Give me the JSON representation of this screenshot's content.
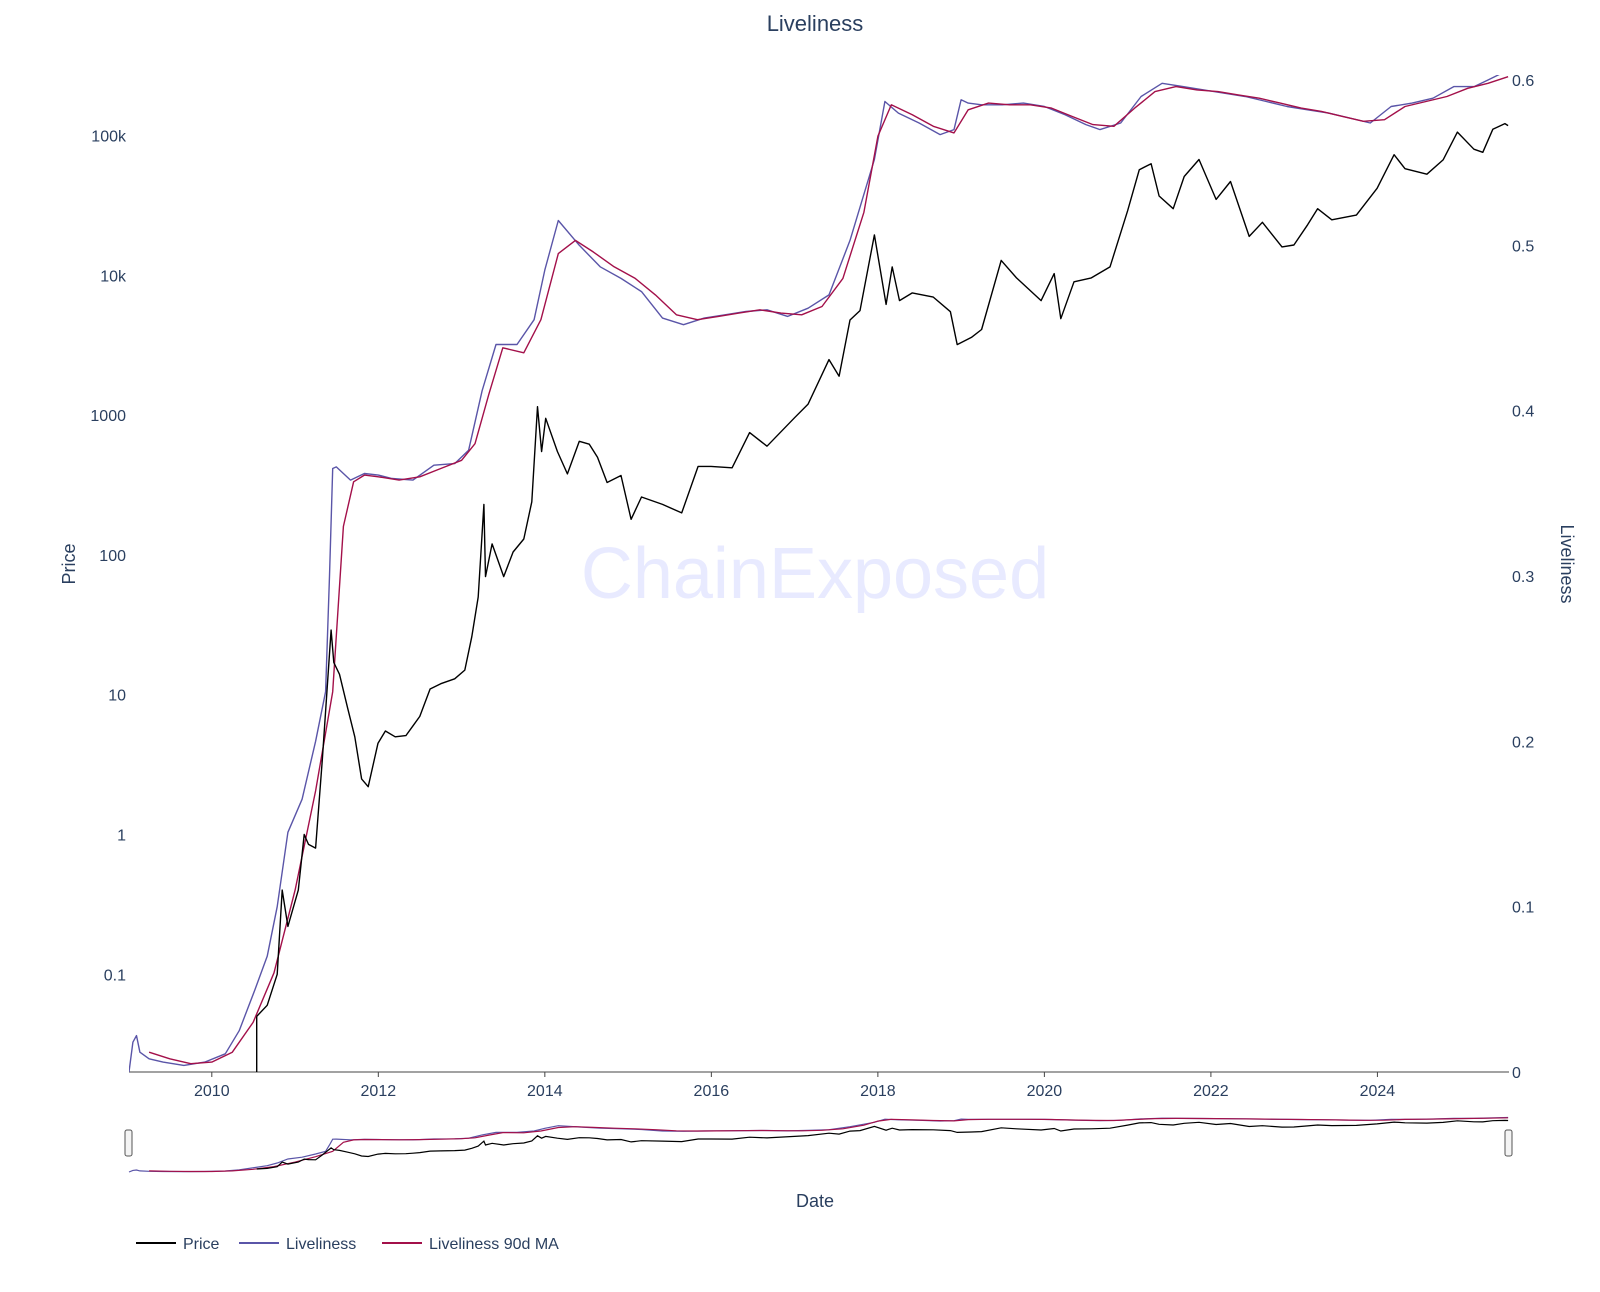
{
  "chart_data": {
    "type": "line",
    "title": "Liveliness",
    "watermark": "ChainExposed",
    "xlabel": "Date",
    "ylabel_left": "Price",
    "ylabel_right": "Liveliness",
    "x_ticks": [
      "2010",
      "2012",
      "2014",
      "2016",
      "2018",
      "2020",
      "2022",
      "2024"
    ],
    "y_left_scale": "log",
    "y_left_ticks": [
      "0.1",
      "1",
      "10",
      "100",
      "1000",
      "10k",
      "100k"
    ],
    "y_left_tick_values": [
      0.1,
      1,
      10,
      100,
      1000,
      10000,
      100000
    ],
    "y_right_ticks": [
      "0",
      "0.1",
      "0.2",
      "0.3",
      "0.4",
      "0.5",
      "0.6"
    ],
    "y_right_tick_values": [
      0,
      0.1,
      0.2,
      0.3,
      0.4,
      0.5,
      0.6
    ],
    "xlim": [
      "2009-01-03",
      "2025-08-01"
    ],
    "ylim_left": [
      0.02,
      250000
    ],
    "ylim_right": [
      0,
      0.6
    ],
    "grid": false,
    "legend_position": "bottom-left",
    "range_slider": true,
    "series": [
      {
        "name": "Price",
        "axis": "left",
        "color": "#000000",
        "points": [
          [
            "2010-07-17",
            0.05
          ],
          [
            "2010-09-01",
            0.06
          ],
          [
            "2010-10-15",
            0.1
          ],
          [
            "2010-11-06",
            0.4
          ],
          [
            "2010-12-01",
            0.22
          ],
          [
            "2011-01-15",
            0.4
          ],
          [
            "2011-02-10",
            1.0
          ],
          [
            "2011-03-01",
            0.85
          ],
          [
            "2011-04-01",
            0.8
          ],
          [
            "2011-05-01",
            3.5
          ],
          [
            "2011-06-08",
            29
          ],
          [
            "2011-06-20",
            17
          ],
          [
            "2011-07-15",
            14
          ],
          [
            "2011-08-20",
            8
          ],
          [
            "2011-09-20",
            5
          ],
          [
            "2011-10-20",
            2.5
          ],
          [
            "2011-11-18",
            2.2
          ],
          [
            "2011-12-31",
            4.5
          ],
          [
            "2012-02-01",
            5.5
          ],
          [
            "2012-03-15",
            5
          ],
          [
            "2012-05-01",
            5.1
          ],
          [
            "2012-06-01",
            6
          ],
          [
            "2012-07-01",
            7
          ],
          [
            "2012-08-15",
            11
          ],
          [
            "2012-10-01",
            12
          ],
          [
            "2012-12-01",
            13
          ],
          [
            "2013-01-15",
            15
          ],
          [
            "2013-02-15",
            26
          ],
          [
            "2013-03-15",
            50
          ],
          [
            "2013-04-09",
            230
          ],
          [
            "2013-04-16",
            70
          ],
          [
            "2013-05-15",
            120
          ],
          [
            "2013-07-05",
            70
          ],
          [
            "2013-08-15",
            105
          ],
          [
            "2013-10-01",
            130
          ],
          [
            "2013-11-05",
            240
          ],
          [
            "2013-11-30",
            1150
          ],
          [
            "2013-12-18",
            550
          ],
          [
            "2014-01-05",
            950
          ],
          [
            "2014-02-25",
            550
          ],
          [
            "2014-04-10",
            380
          ],
          [
            "2014-06-01",
            650
          ],
          [
            "2014-07-15",
            620
          ],
          [
            "2014-08-20",
            500
          ],
          [
            "2014-10-01",
            330
          ],
          [
            "2014-12-01",
            370
          ],
          [
            "2015-01-14",
            180
          ],
          [
            "2015-03-01",
            260
          ],
          [
            "2015-06-01",
            230
          ],
          [
            "2015-08-24",
            200
          ],
          [
            "2015-11-04",
            430
          ],
          [
            "2015-12-31",
            430
          ],
          [
            "2016-04-01",
            420
          ],
          [
            "2016-06-17",
            750
          ],
          [
            "2016-09-01",
            600
          ],
          [
            "2016-12-31",
            960
          ],
          [
            "2017-03-01",
            1200
          ],
          [
            "2017-06-01",
            2500
          ],
          [
            "2017-07-15",
            1900
          ],
          [
            "2017-09-01",
            4800
          ],
          [
            "2017-10-15",
            5600
          ],
          [
            "2017-12-17",
            19500
          ],
          [
            "2018-02-06",
            6200
          ],
          [
            "2018-03-05",
            11500
          ],
          [
            "2018-04-06",
            6600
          ],
          [
            "2018-06-01",
            7500
          ],
          [
            "2018-09-01",
            7000
          ],
          [
            "2018-11-15",
            5500
          ],
          [
            "2018-12-15",
            3200
          ],
          [
            "2019-02-15",
            3600
          ],
          [
            "2019-04-01",
            4100
          ],
          [
            "2019-06-26",
            12800
          ],
          [
            "2019-09-01",
            9600
          ],
          [
            "2019-12-18",
            6600
          ],
          [
            "2020-02-13",
            10300
          ],
          [
            "2020-03-13",
            4900
          ],
          [
            "2020-05-10",
            9000
          ],
          [
            "2020-07-25",
            9600
          ],
          [
            "2020-10-15",
            11500
          ],
          [
            "2020-12-31",
            29000
          ],
          [
            "2021-02-21",
            57000
          ],
          [
            "2021-04-14",
            63000
          ],
          [
            "2021-05-19",
            37000
          ],
          [
            "2021-07-20",
            30000
          ],
          [
            "2021-09-06",
            51000
          ],
          [
            "2021-11-10",
            67500
          ],
          [
            "2022-01-24",
            35000
          ],
          [
            "2022-03-28",
            47000
          ],
          [
            "2022-06-18",
            19000
          ],
          [
            "2022-08-15",
            24000
          ],
          [
            "2022-11-09",
            16000
          ],
          [
            "2022-12-31",
            16500
          ],
          [
            "2023-03-01",
            23000
          ],
          [
            "2023-04-14",
            30000
          ],
          [
            "2023-06-15",
            25000
          ],
          [
            "2023-10-01",
            27000
          ],
          [
            "2023-12-31",
            42000
          ],
          [
            "2024-03-14",
            73000
          ],
          [
            "2024-05-01",
            58000
          ],
          [
            "2024-08-05",
            53000
          ],
          [
            "2024-10-15",
            67000
          ],
          [
            "2024-12-17",
            106000
          ],
          [
            "2025-02-28",
            80000
          ],
          [
            "2025-04-08",
            76000
          ],
          [
            "2025-05-22",
            111000
          ],
          [
            "2025-07-14",
            122000
          ],
          [
            "2025-07-28",
            118000
          ]
        ]
      },
      {
        "name": "Liveliness",
        "axis": "right",
        "color": "#5a55a8",
        "points": [
          [
            "2009-01-03",
            0.0
          ],
          [
            "2009-01-20",
            0.018
          ],
          [
            "2009-02-05",
            0.022
          ],
          [
            "2009-02-20",
            0.012
          ],
          [
            "2009-04-01",
            0.008
          ],
          [
            "2009-06-01",
            0.006
          ],
          [
            "2009-09-01",
            0.004
          ],
          [
            "2009-12-01",
            0.006
          ],
          [
            "2010-03-01",
            0.011
          ],
          [
            "2010-05-01",
            0.025
          ],
          [
            "2010-07-10",
            0.05
          ],
          [
            "2010-09-01",
            0.07
          ],
          [
            "2010-10-15",
            0.1
          ],
          [
            "2010-12-01",
            0.145
          ],
          [
            "2011-02-01",
            0.165
          ],
          [
            "2011-04-01",
            0.2
          ],
          [
            "2011-05-15",
            0.23
          ],
          [
            "2011-06-01",
            0.3
          ],
          [
            "2011-06-15",
            0.365
          ],
          [
            "2011-07-01",
            0.366
          ],
          [
            "2011-09-01",
            0.358
          ],
          [
            "2011-11-01",
            0.362
          ],
          [
            "2012-01-01",
            0.361
          ],
          [
            "2012-03-01",
            0.359
          ],
          [
            "2012-06-01",
            0.358
          ],
          [
            "2012-09-01",
            0.367
          ],
          [
            "2012-12-01",
            0.368
          ],
          [
            "2013-02-01",
            0.376
          ],
          [
            "2013-04-01",
            0.412
          ],
          [
            "2013-06-01",
            0.44
          ],
          [
            "2013-09-01",
            0.44
          ],
          [
            "2013-11-15",
            0.455
          ],
          [
            "2014-01-01",
            0.485
          ],
          [
            "2014-03-01",
            0.515
          ],
          [
            "2014-06-01",
            0.5
          ],
          [
            "2014-09-01",
            0.487
          ],
          [
            "2014-12-01",
            0.48
          ],
          [
            "2015-03-01",
            0.472
          ],
          [
            "2015-06-01",
            0.456
          ],
          [
            "2015-09-01",
            0.452
          ],
          [
            "2015-12-01",
            0.456
          ],
          [
            "2016-03-01",
            0.458
          ],
          [
            "2016-06-01",
            0.46
          ],
          [
            "2016-09-01",
            0.461
          ],
          [
            "2016-12-01",
            0.457
          ],
          [
            "2017-03-01",
            0.462
          ],
          [
            "2017-06-01",
            0.47
          ],
          [
            "2017-09-01",
            0.503
          ],
          [
            "2017-12-17",
            0.552
          ],
          [
            "2018-02-01",
            0.587
          ],
          [
            "2018-04-01",
            0.58
          ],
          [
            "2018-07-01",
            0.574
          ],
          [
            "2018-10-01",
            0.567
          ],
          [
            "2018-12-01",
            0.57
          ],
          [
            "2019-01-01",
            0.588
          ],
          [
            "2019-02-01",
            0.586
          ],
          [
            "2019-04-01",
            0.585
          ],
          [
            "2019-07-01",
            0.585
          ],
          [
            "2019-10-01",
            0.586
          ],
          [
            "2020-01-01",
            0.584
          ],
          [
            "2020-04-01",
            0.579
          ],
          [
            "2020-07-01",
            0.573
          ],
          [
            "2020-09-01",
            0.57
          ],
          [
            "2020-12-01",
            0.574
          ],
          [
            "2021-03-01",
            0.59
          ],
          [
            "2021-06-01",
            0.598
          ],
          [
            "2021-09-01",
            0.596
          ],
          [
            "2021-12-01",
            0.594
          ],
          [
            "2022-03-01",
            0.592
          ],
          [
            "2022-06-01",
            0.59
          ],
          [
            "2022-09-01",
            0.587
          ],
          [
            "2022-12-01",
            0.584
          ],
          [
            "2023-03-01",
            0.582
          ],
          [
            "2023-06-01",
            0.58
          ],
          [
            "2023-09-01",
            0.577
          ],
          [
            "2023-12-01",
            0.574
          ],
          [
            "2024-03-01",
            0.584
          ],
          [
            "2024-06-01",
            0.586
          ],
          [
            "2024-09-01",
            0.589
          ],
          [
            "2024-12-01",
            0.596
          ],
          [
            "2025-03-01",
            0.596
          ],
          [
            "2025-05-01",
            0.6
          ],
          [
            "2025-07-28",
            0.606
          ]
        ]
      },
      {
        "name": "Liveliness 90d MA",
        "axis": "right",
        "color": "#a3104a",
        "points": [
          [
            "2009-04-01",
            0.012
          ],
          [
            "2009-07-01",
            0.008
          ],
          [
            "2009-10-01",
            0.005
          ],
          [
            "2010-01-01",
            0.006
          ],
          [
            "2010-04-01",
            0.012
          ],
          [
            "2010-07-01",
            0.03
          ],
          [
            "2010-10-01",
            0.06
          ],
          [
            "2011-01-01",
            0.11
          ],
          [
            "2011-04-01",
            0.17
          ],
          [
            "2011-06-15",
            0.23
          ],
          [
            "2011-08-01",
            0.33
          ],
          [
            "2011-09-15",
            0.357
          ],
          [
            "2011-11-01",
            0.361
          ],
          [
            "2012-01-01",
            0.36
          ],
          [
            "2012-04-01",
            0.358
          ],
          [
            "2012-07-01",
            0.36
          ],
          [
            "2012-10-01",
            0.365
          ],
          [
            "2013-01-01",
            0.37
          ],
          [
            "2013-03-01",
            0.38
          ],
          [
            "2013-05-01",
            0.41
          ],
          [
            "2013-07-01",
            0.438
          ],
          [
            "2013-10-01",
            0.435
          ],
          [
            "2013-12-15",
            0.455
          ],
          [
            "2014-03-01",
            0.495
          ],
          [
            "2014-05-15",
            0.503
          ],
          [
            "2014-08-01",
            0.496
          ],
          [
            "2014-11-01",
            0.487
          ],
          [
            "2015-02-01",
            0.48
          ],
          [
            "2015-05-01",
            0.47
          ],
          [
            "2015-08-01",
            0.458
          ],
          [
            "2015-11-01",
            0.455
          ],
          [
            "2016-02-01",
            0.457
          ],
          [
            "2016-05-01",
            0.459
          ],
          [
            "2016-08-01",
            0.461
          ],
          [
            "2016-11-01",
            0.459
          ],
          [
            "2017-02-01",
            0.458
          ],
          [
            "2017-05-01",
            0.463
          ],
          [
            "2017-08-01",
            0.48
          ],
          [
            "2017-11-01",
            0.52
          ],
          [
            "2018-01-01",
            0.566
          ],
          [
            "2018-03-01",
            0.585
          ],
          [
            "2018-06-01",
            0.579
          ],
          [
            "2018-09-01",
            0.572
          ],
          [
            "2018-12-01",
            0.568
          ],
          [
            "2019-02-01",
            0.582
          ],
          [
            "2019-05-01",
            0.586
          ],
          [
            "2019-08-01",
            0.585
          ],
          [
            "2019-11-01",
            0.585
          ],
          [
            "2020-02-01",
            0.583
          ],
          [
            "2020-05-01",
            0.578
          ],
          [
            "2020-08-01",
            0.573
          ],
          [
            "2020-11-01",
            0.572
          ],
          [
            "2021-02-01",
            0.583
          ],
          [
            "2021-05-01",
            0.593
          ],
          [
            "2021-08-01",
            0.596
          ],
          [
            "2021-11-01",
            0.594
          ],
          [
            "2022-02-01",
            0.593
          ],
          [
            "2022-05-01",
            0.591
          ],
          [
            "2022-08-01",
            0.589
          ],
          [
            "2022-11-01",
            0.586
          ],
          [
            "2023-02-01",
            0.583
          ],
          [
            "2023-05-01",
            0.581
          ],
          [
            "2023-08-01",
            0.578
          ],
          [
            "2023-11-01",
            0.575
          ],
          [
            "2024-02-01",
            0.576
          ],
          [
            "2024-05-01",
            0.584
          ],
          [
            "2024-08-01",
            0.587
          ],
          [
            "2024-11-01",
            0.59
          ],
          [
            "2025-02-01",
            0.595
          ],
          [
            "2025-05-01",
            0.598
          ],
          [
            "2025-07-28",
            0.602
          ]
        ]
      }
    ]
  }
}
